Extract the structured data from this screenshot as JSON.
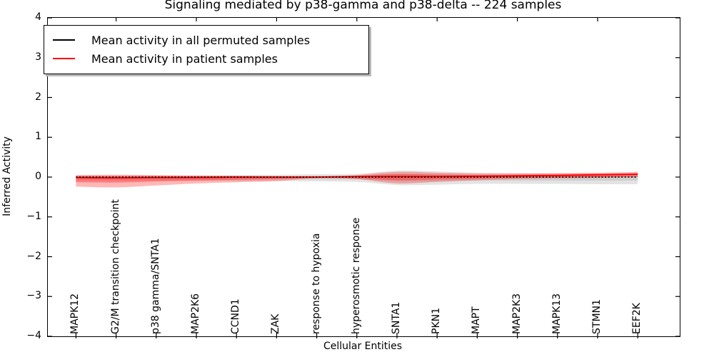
{
  "title": "Signaling mediated by p38-gamma and p38-delta -- 224 samples",
  "legend": {
    "items": [
      {
        "label": "Mean activity in all permuted samples",
        "color": "#000000"
      },
      {
        "label": "Mean activity in patient samples",
        "color": "#ff0000"
      }
    ]
  },
  "chart_data": {
    "type": "line",
    "title": "Signaling mediated by p38-gamma and p38-delta -- 224 samples",
    "xlabel": "Cellular Entities",
    "ylabel": "Inferred Activity",
    "ylim": [
      -4,
      4
    ],
    "ytick_values": [
      4,
      3,
      2,
      1,
      0,
      -1,
      -2,
      -3,
      -4
    ],
    "ytick_labels": [
      "4",
      "3",
      "2",
      "1",
      "0",
      "−1",
      "−2",
      "−3",
      "−4"
    ],
    "grid": false,
    "legend_position": "upper left",
    "categories": [
      "MAPK12",
      "G2/M transition checkpoint",
      "p38 gamma/SNTA1",
      "MAP2K6",
      "CCND1",
      "ZAK",
      "response to hypoxia",
      "hyperosmotic response",
      "SNTA1",
      "PKN1",
      "MAPT",
      "MAP2K3",
      "MAPK13",
      "STMN1",
      "EEF2K"
    ],
    "series": [
      {
        "name": "Mean activity in all permuted samples",
        "color": "#000000",
        "style": "dashed",
        "values": [
          0.0,
          0.0,
          0.0,
          0.0,
          0.0,
          0.0,
          0.0,
          0.0,
          0.0,
          0.0,
          0.0,
          0.0,
          0.0,
          0.0,
          0.0
        ]
      },
      {
        "name": "Mean activity in patient samples",
        "color": "#ff0000",
        "style": "solid",
        "values": [
          -0.01,
          -0.02,
          -0.01,
          -0.01,
          0.0,
          0.0,
          0.0,
          0.01,
          0.01,
          0.01,
          0.02,
          0.03,
          0.04,
          0.06,
          0.07
        ]
      }
    ],
    "bands": [
      {
        "name": "permuted-outer-band",
        "color": "#999999",
        "opacity": 0.28,
        "upper": [
          0.04,
          0.04,
          0.04,
          0.04,
          0.05,
          0.06,
          0.07,
          0.08,
          0.16,
          0.14,
          0.11,
          0.1,
          0.09,
          0.08,
          0.07
        ],
        "lower": [
          -0.09,
          -0.09,
          -0.09,
          -0.09,
          -0.1,
          -0.1,
          -0.11,
          -0.12,
          -0.2,
          -0.19,
          -0.17,
          -0.17,
          -0.17,
          -0.18,
          -0.18
        ]
      },
      {
        "name": "permuted-inner-band",
        "color": "#999999",
        "opacity": 0.28,
        "upper": [
          0.02,
          0.02,
          0.02,
          0.02,
          0.03,
          0.03,
          0.04,
          0.04,
          0.08,
          0.07,
          0.06,
          0.05,
          0.05,
          0.04,
          0.04
        ],
        "lower": [
          -0.05,
          -0.05,
          -0.05,
          -0.05,
          -0.05,
          -0.05,
          -0.06,
          -0.06,
          -0.1,
          -0.1,
          -0.09,
          -0.09,
          -0.09,
          -0.09,
          -0.09
        ]
      },
      {
        "name": "patient-outer-band",
        "color": "#ff0000",
        "opacity": 0.28,
        "upper": [
          0.05,
          0.06,
          0.05,
          0.04,
          0.03,
          0.02,
          0.01,
          0.05,
          0.13,
          0.11,
          0.09,
          0.09,
          0.1,
          0.11,
          0.13
        ],
        "lower": [
          -0.24,
          -0.26,
          -0.21,
          -0.16,
          -0.13,
          -0.1,
          -0.03,
          -0.05,
          -0.16,
          -0.12,
          -0.08,
          -0.05,
          -0.03,
          -0.02,
          0.0
        ]
      },
      {
        "name": "patient-inner-band",
        "color": "#ff0000",
        "opacity": 0.3,
        "upper": [
          0.02,
          0.02,
          0.02,
          0.02,
          0.01,
          0.01,
          0.0,
          0.03,
          0.07,
          0.06,
          0.05,
          0.06,
          0.07,
          0.08,
          0.1
        ],
        "lower": [
          -0.13,
          -0.14,
          -0.11,
          -0.09,
          -0.07,
          -0.05,
          -0.02,
          -0.03,
          -0.08,
          -0.06,
          -0.04,
          -0.02,
          -0.01,
          0.0,
          0.03
        ]
      }
    ]
  }
}
